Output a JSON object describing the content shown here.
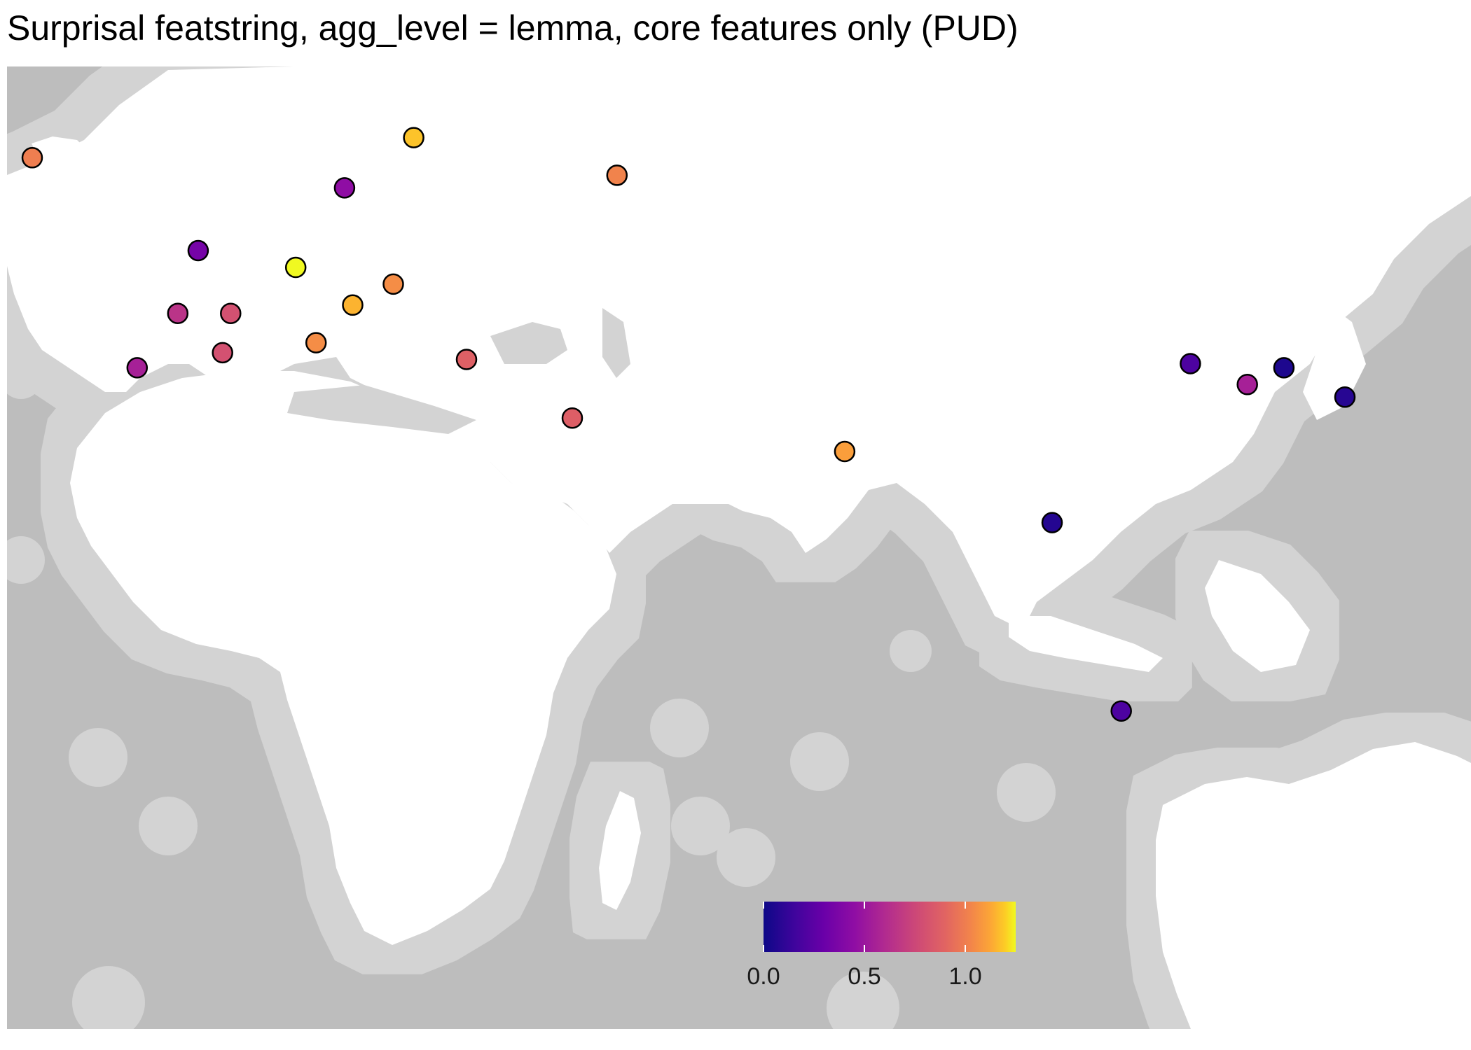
{
  "title": "Surprisal featstring, agg_level = lemma, core features only (PUD)",
  "colors": {
    "ocean": "#bdbdbd",
    "coastal_buffer": "#d3d3d3",
    "land": "#ffffff",
    "marker_outline": "#000000"
  },
  "legend": {
    "type": "continuous colorbar",
    "palette": "plasma",
    "ticks": [
      "0.0",
      "0.5",
      "1.0"
    ],
    "tick_values": [
      0.0,
      0.5,
      1.0
    ],
    "range": [
      0.0,
      1.25
    ]
  },
  "chart_data": {
    "type": "scatter",
    "projection": "equirectangular",
    "note": "points are language sites; color = surprisal value",
    "lon_range": [
      -25,
      155
    ],
    "lat_range": [
      -40,
      75
    ],
    "points": [
      {
        "lon": -21.9,
        "lat": 64.1,
        "value": 1.0
      },
      {
        "lon": 25.0,
        "lat": 66.5,
        "value": 1.18
      },
      {
        "lon": 50.0,
        "lat": 62.0,
        "value": 1.02
      },
      {
        "lon": 16.5,
        "lat": 60.5,
        "value": 0.45
      },
      {
        "lon": -1.5,
        "lat": 53.0,
        "value": 0.35
      },
      {
        "lon": 10.5,
        "lat": 51.0,
        "value": 1.25
      },
      {
        "lon": 22.5,
        "lat": 49.0,
        "value": 1.05
      },
      {
        "lon": 17.5,
        "lat": 46.5,
        "value": 1.15
      },
      {
        "lon": -4.0,
        "lat": 45.5,
        "value": 0.65
      },
      {
        "lon": 2.5,
        "lat": 45.5,
        "value": 0.8
      },
      {
        "lon": 13.0,
        "lat": 42.0,
        "value": 1.05
      },
      {
        "lon": 1.5,
        "lat": 40.8,
        "value": 0.8
      },
      {
        "lon": -9.0,
        "lat": 39.0,
        "value": 0.55
      },
      {
        "lon": 31.5,
        "lat": 40.0,
        "value": 0.88
      },
      {
        "lon": 44.5,
        "lat": 33.0,
        "value": 0.87
      },
      {
        "lon": 78.0,
        "lat": 29.0,
        "value": 1.1
      },
      {
        "lon": 120.5,
        "lat": 39.5,
        "value": 0.2
      },
      {
        "lon": 127.5,
        "lat": 37.0,
        "value": 0.55
      },
      {
        "lon": 132.0,
        "lat": 39.0,
        "value": 0.05
      },
      {
        "lon": 139.5,
        "lat": 35.5,
        "value": 0.08
      },
      {
        "lon": 103.5,
        "lat": 20.5,
        "value": 0.07
      },
      {
        "lon": 112.0,
        "lat": -2.0,
        "value": 0.2
      }
    ]
  }
}
